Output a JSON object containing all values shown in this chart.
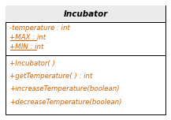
{
  "title": "Incubator",
  "attributes": [
    {
      "text": "-temperature : int",
      "underline": false
    },
    {
      "text": "+MAX : int",
      "underline": true
    },
    {
      "text": "+MIN : int",
      "underline": true
    }
  ],
  "methods": [
    {
      "text": "+Incubator( )",
      "underline": false
    },
    {
      "text": "+getTemperature( ) : int",
      "underline": false
    },
    {
      "text": "+increaseTemperature(boolean)",
      "underline": false
    },
    {
      "text": "+decreaseTemperature(boolean)",
      "underline": false
    }
  ],
  "bg_color": "#ffffff",
  "border_color": "#000000",
  "text_color": "#d46000",
  "title_bg": "#ebebeb",
  "font_size": 6.2,
  "title_font_size": 7.5,
  "fig_width": 2.17,
  "fig_height": 1.52,
  "dpi": 100
}
